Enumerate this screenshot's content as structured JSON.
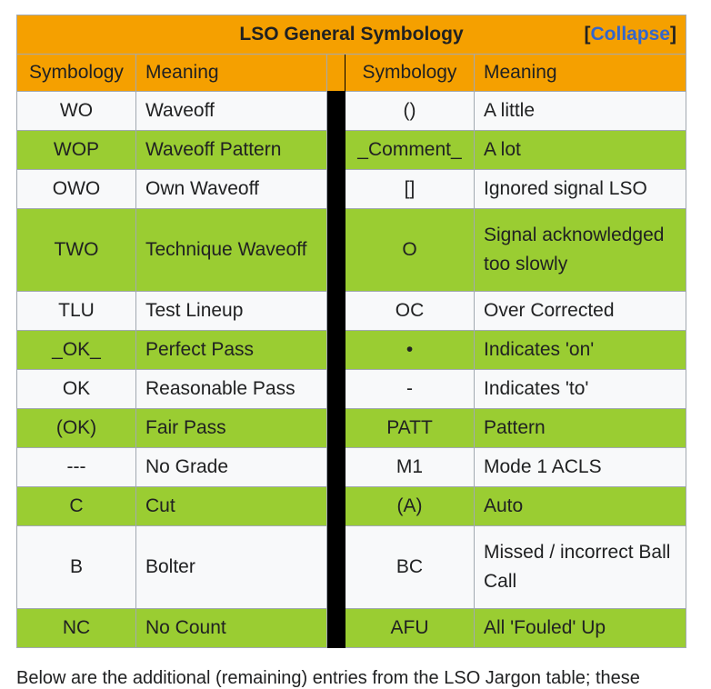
{
  "navbox": {
    "title": "LSO General Symbology",
    "collapse_open": "[",
    "collapse_label": "Collapse",
    "collapse_close": "]",
    "headers": {
      "left_symbology": "Symbology",
      "left_meaning": "Meaning",
      "right_symbology": "Symbology",
      "right_meaning": "Meaning"
    },
    "colors": {
      "title_bg": "#f5a000",
      "row_green": "#9acd32",
      "row_white": "#f8f9fa",
      "divider": "#000000",
      "link": "#3366cc"
    },
    "rows": [
      {
        "ls": "WO",
        "lm": "Waveoff",
        "rs": "()",
        "rm": "A little"
      },
      {
        "ls": "WOP",
        "lm": "Waveoff Pattern",
        "rs": "_Comment_",
        "rm": "A lot"
      },
      {
        "ls": "OWO",
        "lm": "Own Waveoff",
        "rs": "[]",
        "rm": "Ignored signal LSO"
      },
      {
        "ls": "TWO",
        "lm": "Technique Waveoff",
        "rs": "O",
        "rm": "Signal acknowledged too slowly"
      },
      {
        "ls": "TLU",
        "lm": "Test Lineup",
        "rs": "OC",
        "rm": "Over Corrected"
      },
      {
        "ls": "_OK_",
        "lm": "Perfect Pass",
        "rs": "•",
        "rm": "Indicates 'on'"
      },
      {
        "ls": "OK",
        "lm": "Reasonable Pass",
        "rs": "-",
        "rm": "Indicates 'to'"
      },
      {
        "ls": "(OK)",
        "lm": "Fair Pass",
        "rs": "PATT",
        "rm": "Pattern"
      },
      {
        "ls": "---",
        "lm": "No Grade",
        "rs": "M1",
        "rm": "Mode 1 ACLS"
      },
      {
        "ls": "C",
        "lm": "Cut",
        "rs": "(A)",
        "rm": "Auto"
      },
      {
        "ls": "B",
        "lm": "Bolter",
        "rs": "BC",
        "rm": "Missed / incorrect Ball Call"
      },
      {
        "ls": "NC",
        "lm": "No Count",
        "rs": "AFU",
        "rm": "All 'Fouled' Up"
      }
    ]
  },
  "footer_text": "Below are the additional (remaining) entries from the LSO Jargon table; these"
}
